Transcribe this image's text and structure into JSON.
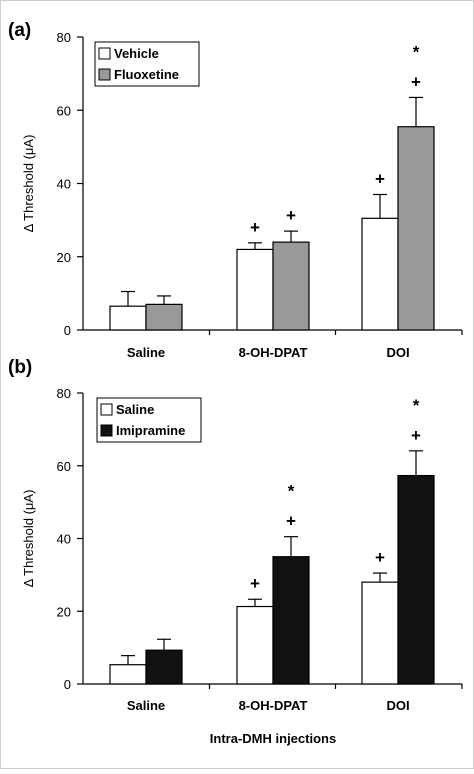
{
  "chart_data": [
    {
      "type": "bar",
      "panel_label": "(a)",
      "categories": [
        "Saline",
        "8-OH-DPAT",
        "DOI"
      ],
      "ylabel": "Δ Threshold (μA)",
      "xlabel": "",
      "ylim": [
        0,
        80
      ],
      "yticks": [
        0,
        20,
        40,
        60,
        80
      ],
      "legend_position": "top-left",
      "series": [
        {
          "name": "Vehicle",
          "color": "#ffffff",
          "values": [
            6.5,
            22,
            30.5
          ],
          "errors": [
            4,
            1.8,
            6.5
          ],
          "annotations": [
            [],
            [
              "+"
            ],
            [
              "+"
            ]
          ]
        },
        {
          "name": "Fluoxetine",
          "color": "#999999",
          "values": [
            7,
            24,
            55.5
          ],
          "errors": [
            2.3,
            3,
            8
          ],
          "annotations": [
            [],
            [
              "+"
            ],
            [
              "+",
              "*"
            ]
          ]
        }
      ]
    },
    {
      "type": "bar",
      "panel_label": "(b)",
      "categories": [
        "Saline",
        "8-OH-DPAT",
        "DOI"
      ],
      "ylabel": "Δ Threshold (μA)",
      "xlabel": "Intra-DMH injections",
      "ylim": [
        0,
        80
      ],
      "yticks": [
        0,
        20,
        40,
        60,
        80
      ],
      "legend_position": "top-left",
      "series": [
        {
          "name": "Saline",
          "color": "#ffffff",
          "values": [
            5.3,
            21.3,
            28
          ],
          "errors": [
            2.5,
            2,
            2.5
          ],
          "annotations": [
            [],
            [
              "+"
            ],
            [
              "+"
            ]
          ]
        },
        {
          "name": "Imipramine",
          "color": "#111111",
          "values": [
            9.3,
            35,
            57.3
          ],
          "errors": [
            3,
            5.5,
            6.8
          ],
          "annotations": [
            [],
            [
              "+",
              "*"
            ],
            [
              "+",
              "*"
            ]
          ]
        }
      ]
    }
  ]
}
